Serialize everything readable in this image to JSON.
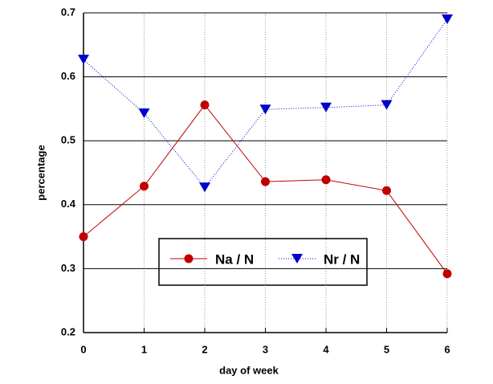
{
  "chart_data": {
    "type": "line",
    "x": [
      0,
      1,
      2,
      3,
      4,
      5,
      6
    ],
    "xlabel": "day  of week",
    "ylabel": "percentage",
    "xlim": [
      0,
      6
    ],
    "xticks": [
      0,
      1,
      2,
      3,
      4,
      5,
      6
    ],
    "ylim": [
      0.2,
      0.7
    ],
    "yticks": [
      0.2,
      0.3,
      0.4,
      0.5,
      0.6,
      0.7
    ],
    "grid": true,
    "series": [
      {
        "name": "Na / N",
        "color": "#c00000",
        "marker": "circle",
        "linestyle": "solid",
        "values": [
          0.35,
          0.429,
          0.556,
          0.436,
          0.439,
          0.422,
          0.292
        ]
      },
      {
        "name": "Nr / N",
        "color": "#0000cc",
        "marker": "triangle-down",
        "linestyle": "dotted",
        "values": [
          0.627,
          0.543,
          0.427,
          0.549,
          0.552,
          0.556,
          0.69
        ]
      }
    ]
  }
}
